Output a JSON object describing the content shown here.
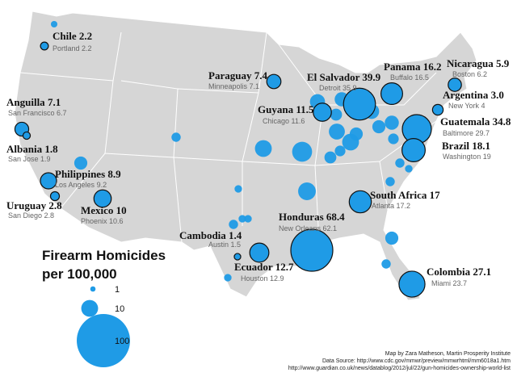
{
  "map": {
    "cities": [
      {
        "country": "Chile",
        "country_value": 2.2,
        "city": "Portland",
        "city_value": 2.2
      },
      {
        "country": "Anguilla",
        "country_value": 7.1,
        "city": "San Francisco",
        "city_value": 6.7
      },
      {
        "country": "Albania",
        "country_value": 1.8,
        "city": "San Jose",
        "city_value": 1.9
      },
      {
        "country": "Uruguay",
        "country_value": 2.8,
        "city": "San Diego",
        "city_value": 2.8
      },
      {
        "country": "Philippines",
        "country_value": 8.9,
        "city": "Los Angeles",
        "city_value": 9.2
      },
      {
        "country": "Mexico",
        "country_value": 10,
        "city": "Phoenix",
        "city_value": 10.6
      },
      {
        "country": "Paraguay",
        "country_value": 7.4,
        "city": "Minneapolis",
        "city_value": 7.1
      },
      {
        "country": "El Salvador",
        "country_value": 39.9,
        "city": "Detroit",
        "city_value": 35.9
      },
      {
        "country": "Panama",
        "country_value": 16.2,
        "city": "Buffalo",
        "city_value": 16.5
      },
      {
        "country": "Nicaragua",
        "country_value": 5.9,
        "city": "Boston",
        "city_value": 6.2
      },
      {
        "country": "Argentina",
        "country_value": {
          "value": 3,
          "label": "3.0"
        },
        "city": "New York",
        "city_value": 4
      },
      {
        "country": "Guatemala",
        "country_value": 34.8,
        "city": "Baltimore",
        "city_value": 29.7
      },
      {
        "country": "Brazil",
        "country_value": 18.1,
        "city": "Washington",
        "city_value": 19
      },
      {
        "country": "Guyana",
        "country_value": 11.5,
        "city": "Chicago",
        "city_value": 11.6
      },
      {
        "country": "South Africa",
        "country_value": 17,
        "city": "Atlanta",
        "city_value": 17.2
      },
      {
        "country": "Honduras",
        "country_value": 68.4,
        "city": "New Orleans",
        "city_value": 62.1
      },
      {
        "country": "Cambodia",
        "country_value": 1.4,
        "city": "Austin",
        "city_value": 1.5
      },
      {
        "country": "Ecuador",
        "country_value": 12.7,
        "city": "Houston",
        "city_value": 12.9
      },
      {
        "country": "Colombia",
        "country_value": 27.1,
        "city": "Miami",
        "city_value": 23.7
      }
    ],
    "other_cities": [
      1.5,
      2.5,
      6,
      2,
      10,
      14,
      11,
      2,
      3,
      2,
      2,
      9,
      7,
      5,
      10,
      6,
      4,
      8,
      6,
      7,
      4,
      3,
      2,
      3,
      6,
      3,
      8,
      3,
      5
    ],
    "legend": {
      "title": [
        "Firearm Homicides",
        "per 100,000"
      ],
      "sizes": [
        1,
        10,
        100
      ]
    },
    "credits": [
      "Map by Zara Matheson, Martin Prosperity Institute",
      "Data Source: http://www.cdc.gov/mmwr/preview/mmwrhtml/mm6018a1.htm",
      "http://www.guardian.co.uk/news/datablog/2012/jul/22/gun-homicides-ownership-world-list"
    ]
  }
}
